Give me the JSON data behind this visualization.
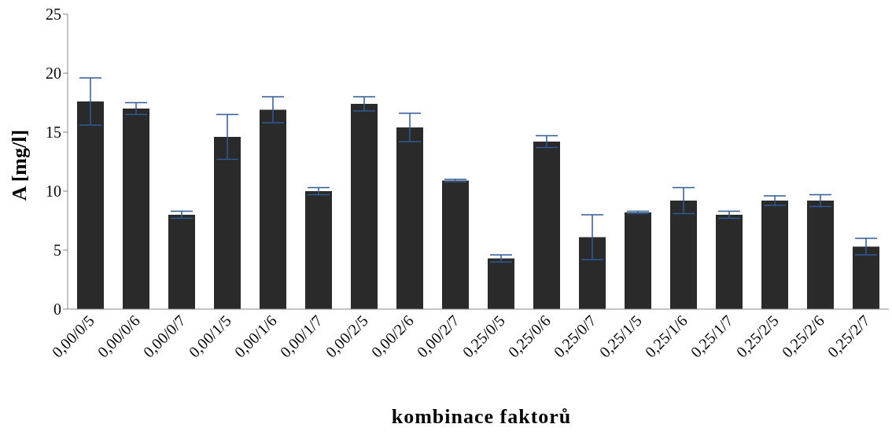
{
  "chart_data": {
    "type": "bar",
    "xlabel": "kombinace faktorů",
    "ylabel": "A [mg/l]",
    "categories": [
      "0,00/0/5",
      "0,00/0/6",
      "0,00/0/7",
      "0,00/1/5",
      "0,00/1/6",
      "0,00/1/7",
      "0,00/2/5",
      "0,00/2/6",
      "0,00/2/7",
      "0,25/0/5",
      "0,25/0/6",
      "0,25/0/7",
      "0,25/1/5",
      "0,25/1/6",
      "0,25/1/7",
      "0,25/2/5",
      "0,25/2/6",
      "0,25/2/7"
    ],
    "values": [
      17.6,
      17.0,
      8.0,
      14.6,
      16.9,
      10.0,
      17.4,
      15.4,
      10.9,
      4.3,
      14.2,
      6.1,
      8.2,
      9.2,
      8.0,
      9.2,
      9.2,
      5.3
    ],
    "errors": [
      2.0,
      0.5,
      0.3,
      1.9,
      1.1,
      0.3,
      0.6,
      1.2,
      0.1,
      0.3,
      0.5,
      1.9,
      0.1,
      1.1,
      0.3,
      0.4,
      0.5,
      0.7
    ],
    "color": "#2a2a2a",
    "ylim": [
      0,
      25
    ],
    "yticks": [
      0,
      5,
      10,
      15,
      20,
      25
    ],
    "grid": false,
    "legend": false
  }
}
